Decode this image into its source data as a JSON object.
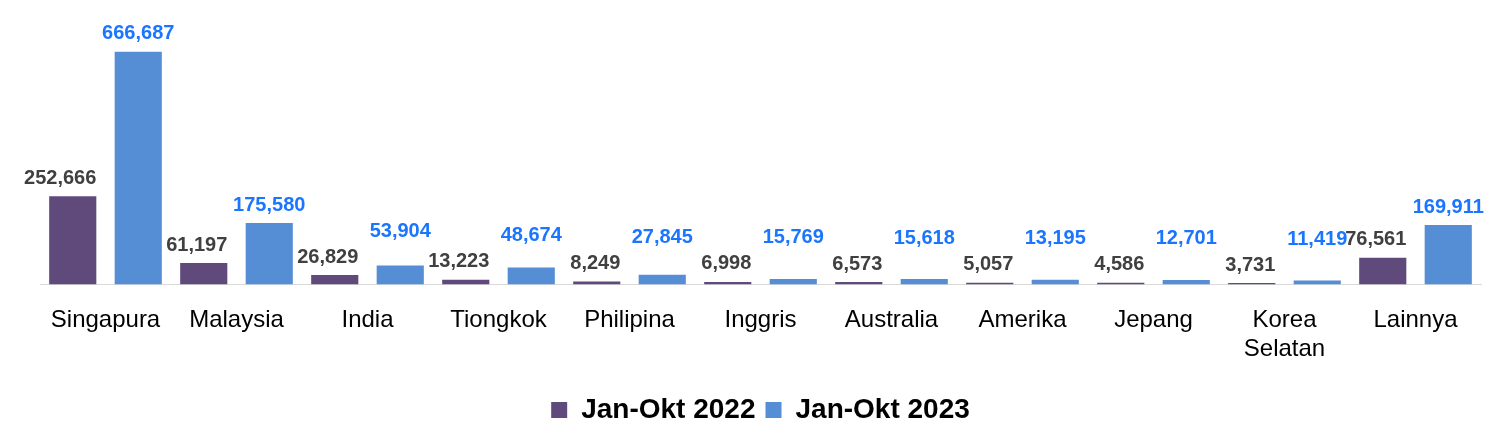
{
  "chart_data": {
    "type": "bar",
    "categories": [
      "Singapura",
      "Malaysia",
      "India",
      "Tiongkok",
      "Philipina",
      "Inggris",
      "Australia",
      "Amerika",
      "Jepang",
      "Korea Selatan",
      "Lainnya"
    ],
    "series": [
      {
        "name": "Jan-Okt 2022",
        "color": "#604a7b",
        "values": [
          252666,
          61197,
          26829,
          13223,
          8249,
          6998,
          6573,
          5057,
          4586,
          3731,
          76561
        ],
        "value_labels": [
          "252,666",
          "61,197",
          "26,829",
          "13,223",
          "8,249",
          "6,998",
          "6,573",
          "5,057",
          "4,586",
          "3,731",
          "76,561"
        ]
      },
      {
        "name": "Jan-Okt 2023",
        "color": "#558ed5",
        "values": [
          666687,
          175580,
          53904,
          48674,
          27845,
          15769,
          15618,
          13195,
          12701,
          11419,
          169911
        ],
        "value_labels": [
          "666,687",
          "175,580",
          "53,904",
          "48,674",
          "27,845",
          "15,769",
          "15,618",
          "13,195",
          "12,701",
          "11,419",
          "169,911"
        ]
      }
    ],
    "legend": "bottom"
  }
}
